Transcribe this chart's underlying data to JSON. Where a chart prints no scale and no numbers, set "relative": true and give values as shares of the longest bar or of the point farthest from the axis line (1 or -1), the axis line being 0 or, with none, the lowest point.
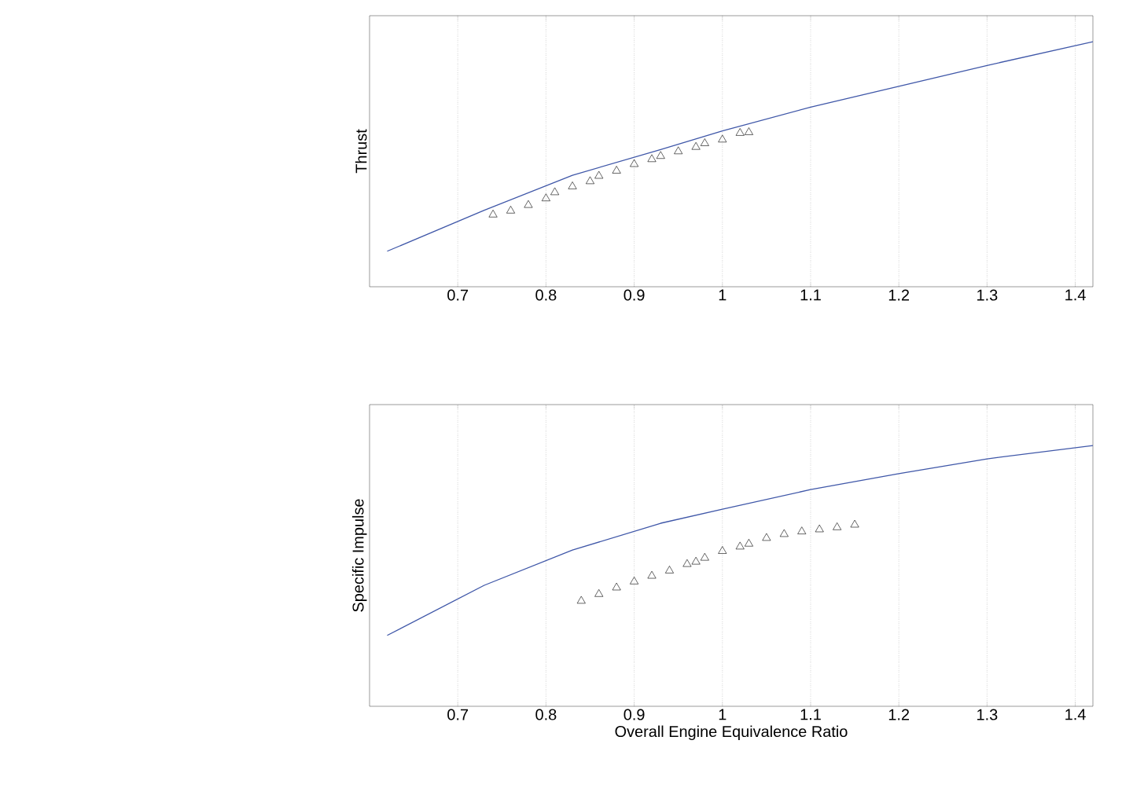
{
  "chart_data": [
    {
      "type": "line",
      "ylabel": "Thrust",
      "relative": true,
      "xlim": [
        0.6,
        1.42
      ],
      "xticks": [
        0.7,
        0.8,
        0.9,
        1,
        1.1,
        1.2,
        1.3,
        1.4
      ],
      "grid": "x",
      "series": [
        {
          "type": "line",
          "color": "#3f57a8",
          "x": [
            0.62,
            0.73,
            0.83,
            0.93,
            1.0,
            1.1,
            1.2,
            1.3,
            1.42
          ],
          "values": [
            0.145,
            0.312,
            0.455,
            0.56,
            0.636,
            0.733,
            0.818,
            0.903,
            1
          ]
        },
        {
          "type": "scatter",
          "color": "#000000",
          "marker": "triangle",
          "x": [
            0.74,
            0.76,
            0.78,
            0.8,
            0.81,
            0.83,
            0.85,
            0.86,
            0.88,
            0.9,
            0.92,
            0.93,
            0.95,
            0.97,
            0.98,
            1.0,
            1.02,
            1.03
          ],
          "values": [
            0.294,
            0.31,
            0.333,
            0.36,
            0.385,
            0.409,
            0.43,
            0.452,
            0.473,
            0.5,
            0.52,
            0.533,
            0.552,
            0.57,
            0.585,
            0.6,
            0.627,
            0.63
          ]
        }
      ]
    },
    {
      "type": "line",
      "ylabel": "Specific Impulse",
      "xlabel": "Overall Engine Equivalence Ratio",
      "relative": true,
      "xlim": [
        0.6,
        1.42
      ],
      "xticks": [
        0.7,
        0.8,
        0.9,
        1,
        1.1,
        1.2,
        1.3,
        1.4
      ],
      "grid": "x",
      "series": [
        {
          "type": "line",
          "color": "#3f57a8",
          "x": [
            0.62,
            0.73,
            0.83,
            0.93,
            1.0,
            1.1,
            1.2,
            1.3,
            1.42
          ],
          "values": [
            0.272,
            0.464,
            0.599,
            0.702,
            0.756,
            0.831,
            0.892,
            0.949,
            1
          ]
        },
        {
          "type": "scatter",
          "color": "#000000",
          "marker": "triangle",
          "x": [
            0.84,
            0.86,
            0.88,
            0.9,
            0.92,
            0.94,
            0.96,
            0.97,
            0.98,
            1.0,
            1.02,
            1.03,
            1.05,
            1.07,
            1.09,
            1.11,
            1.13,
            1.15
          ],
          "values": [
            0.404,
            0.43,
            0.455,
            0.478,
            0.5,
            0.52,
            0.545,
            0.554,
            0.569,
            0.595,
            0.612,
            0.623,
            0.645,
            0.66,
            0.67,
            0.678,
            0.686,
            0.696
          ]
        }
      ]
    }
  ]
}
